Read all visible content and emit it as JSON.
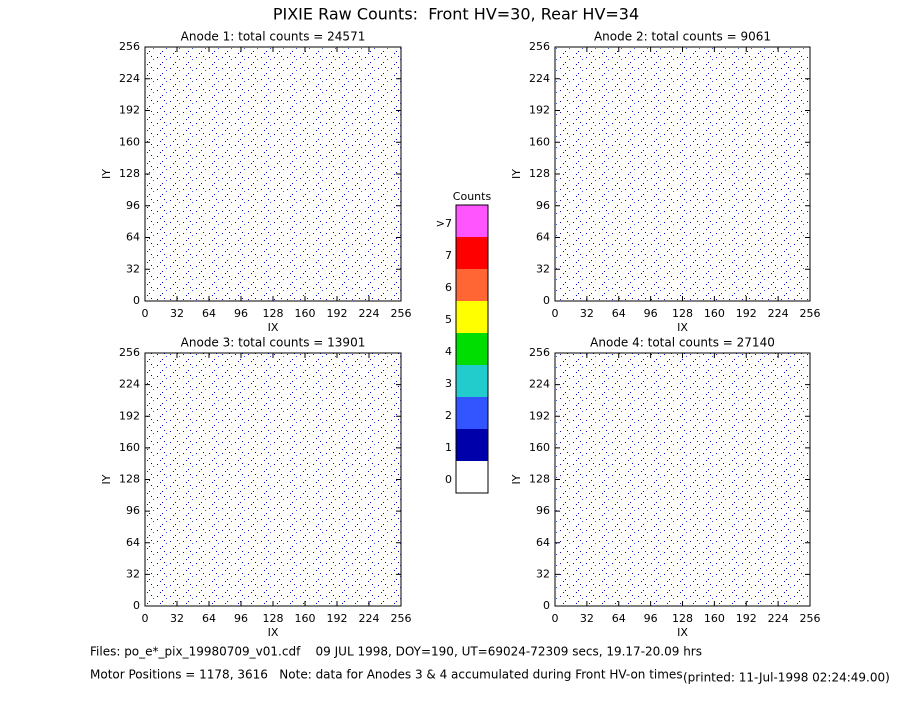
{
  "title": "PIXIE Raw Counts:  Front HV=30, Rear HV=34",
  "chart_data": [
    {
      "type": "heatmap",
      "title": "Anode 1: total counts = 24571",
      "xlabel": "IX",
      "ylabel": "IY",
      "xlim": [
        0,
        256
      ],
      "ylim": [
        0,
        256
      ],
      "xticks": [
        0,
        32,
        64,
        96,
        128,
        160,
        192,
        224,
        256
      ],
      "yticks": [
        0,
        32,
        64,
        96,
        128,
        160,
        192,
        224,
        256
      ]
    },
    {
      "type": "heatmap",
      "title": "Anode 2: total counts = 9061",
      "xlabel": "IX",
      "ylabel": "IY",
      "xlim": [
        0,
        256
      ],
      "ylim": [
        0,
        256
      ],
      "xticks": [
        0,
        32,
        64,
        96,
        128,
        160,
        192,
        224,
        256
      ],
      "yticks": [
        0,
        32,
        64,
        96,
        128,
        160,
        192,
        224,
        256
      ]
    },
    {
      "type": "heatmap",
      "title": "Anode 3: total counts = 13901",
      "xlabel": "IX",
      "ylabel": "IY",
      "xlim": [
        0,
        256
      ],
      "ylim": [
        0,
        256
      ],
      "xticks": [
        0,
        32,
        64,
        96,
        128,
        160,
        192,
        224,
        256
      ],
      "yticks": [
        0,
        32,
        64,
        96,
        128,
        160,
        192,
        224,
        256
      ]
    },
    {
      "type": "heatmap",
      "title": "Anode 4: total counts = 27140",
      "xlabel": "IX",
      "ylabel": "IY",
      "xlim": [
        0,
        256
      ],
      "ylim": [
        0,
        256
      ],
      "xticks": [
        0,
        32,
        64,
        96,
        128,
        160,
        192,
        224,
        256
      ],
      "yticks": [
        0,
        32,
        64,
        96,
        128,
        160,
        192,
        224,
        256
      ]
    }
  ],
  "colorbar": {
    "title": "Counts",
    "levels": [
      {
        "label": "0",
        "color": "#ffffff"
      },
      {
        "label": "1",
        "color": "#0000aa"
      },
      {
        "label": "2",
        "color": "#3355ff"
      },
      {
        "label": "3",
        "color": "#22cccc"
      },
      {
        "label": "4",
        "color": "#00dd00"
      },
      {
        "label": "5",
        "color": "#ffff00"
      },
      {
        "label": "6",
        "color": "#ff6633"
      },
      {
        "label": "7",
        "color": "#ff0000"
      },
      {
        "label": ">7",
        "color": "#ff55ff"
      }
    ]
  },
  "footer": {
    "files": "Files: po_e*_pix_19980709_v01.cdf    09 JUL 1998, DOY=190, UT=69024-72309 secs, 19.17-20.09 hrs",
    "motor": "Motor Positions = 1178, 3616   Note: data for Anodes 3 & 4 accumulated during Front HV-on times",
    "printed": "(printed: 11-Jul-1998 02:24:49.00)"
  }
}
